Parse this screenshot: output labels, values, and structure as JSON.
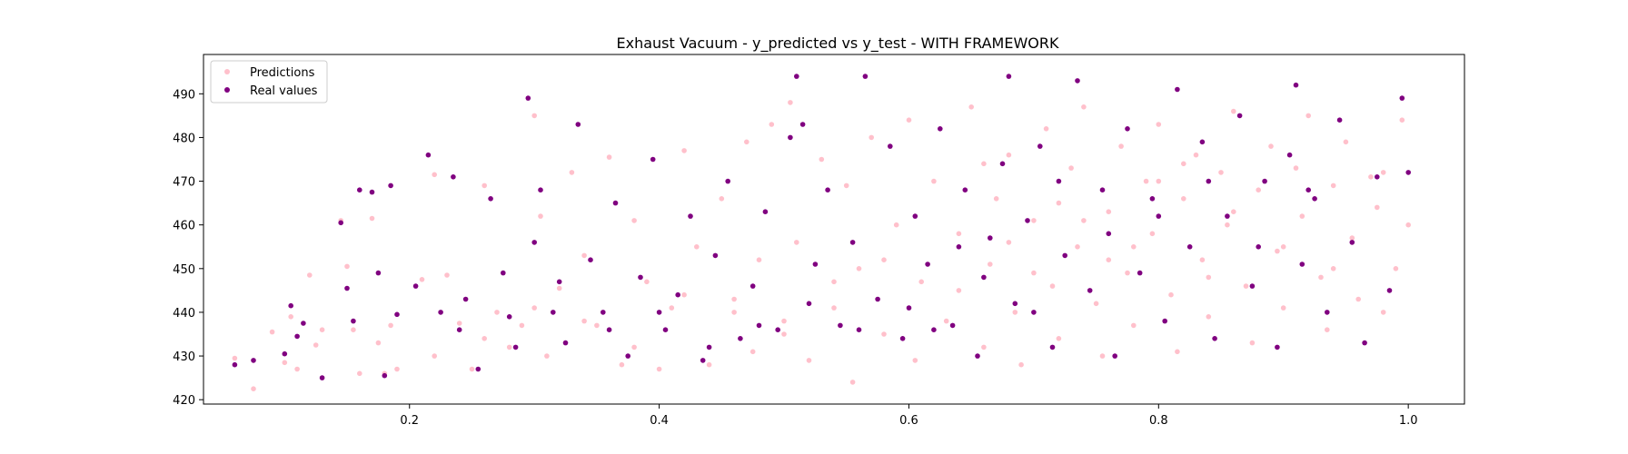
{
  "chart_data": {
    "type": "scatter",
    "title": "Exhaust Vacuum - y_predicted vs y_test - WITH FRAMEWORK",
    "xlabel": "",
    "ylabel": "",
    "xlim": [
      0.035,
      1.045
    ],
    "ylim": [
      419,
      499
    ],
    "x_ticks": [
      "0.2",
      "0.4",
      "0.6",
      "0.8",
      "1.0"
    ],
    "y_ticks": [
      "420",
      "430",
      "440",
      "450",
      "460",
      "470",
      "480",
      "490"
    ],
    "grid": false,
    "legend_position": "top-left",
    "series": [
      {
        "name": "Predictions",
        "color": "#ffc0cb",
        "points": [
          [
            0.06,
            429.5
          ],
          [
            0.075,
            422.5
          ],
          [
            0.09,
            435.5
          ],
          [
            0.1,
            428.5
          ],
          [
            0.105,
            439
          ],
          [
            0.11,
            427
          ],
          [
            0.12,
            448.5
          ],
          [
            0.125,
            432.5
          ],
          [
            0.13,
            436
          ],
          [
            0.145,
            461
          ],
          [
            0.15,
            450.5
          ],
          [
            0.155,
            436
          ],
          [
            0.16,
            426
          ],
          [
            0.17,
            461.5
          ],
          [
            0.175,
            433
          ],
          [
            0.18,
            426
          ],
          [
            0.185,
            437
          ],
          [
            0.19,
            427
          ],
          [
            0.21,
            447.5
          ],
          [
            0.22,
            471.5
          ],
          [
            0.23,
            448.5
          ],
          [
            0.24,
            437.5
          ],
          [
            0.25,
            427
          ],
          [
            0.26,
            469
          ],
          [
            0.27,
            440
          ],
          [
            0.28,
            432
          ],
          [
            0.29,
            437
          ],
          [
            0.3,
            485
          ],
          [
            0.305,
            462
          ],
          [
            0.31,
            430
          ],
          [
            0.32,
            445.5
          ],
          [
            0.33,
            472
          ],
          [
            0.34,
            453
          ],
          [
            0.35,
            437
          ],
          [
            0.36,
            475.5
          ],
          [
            0.37,
            428
          ],
          [
            0.38,
            461
          ],
          [
            0.39,
            447
          ],
          [
            0.4,
            427
          ],
          [
            0.41,
            441
          ],
          [
            0.42,
            477
          ],
          [
            0.43,
            455
          ],
          [
            0.44,
            428
          ],
          [
            0.45,
            466
          ],
          [
            0.46,
            443
          ],
          [
            0.47,
            479
          ],
          [
            0.475,
            431
          ],
          [
            0.48,
            452
          ],
          [
            0.49,
            483
          ],
          [
            0.5,
            438
          ],
          [
            0.505,
            488
          ],
          [
            0.51,
            456
          ],
          [
            0.52,
            429
          ],
          [
            0.53,
            475
          ],
          [
            0.54,
            441
          ],
          [
            0.55,
            469
          ],
          [
            0.555,
            424
          ],
          [
            0.56,
            450
          ],
          [
            0.57,
            480
          ],
          [
            0.58,
            435
          ],
          [
            0.59,
            460
          ],
          [
            0.6,
            484
          ],
          [
            0.605,
            429
          ],
          [
            0.61,
            447
          ],
          [
            0.62,
            470
          ],
          [
            0.63,
            438
          ],
          [
            0.64,
            458
          ],
          [
            0.65,
            487
          ],
          [
            0.66,
            432
          ],
          [
            0.665,
            451
          ],
          [
            0.67,
            466
          ],
          [
            0.68,
            476
          ],
          [
            0.685,
            440
          ],
          [
            0.69,
            428
          ],
          [
            0.7,
            461
          ],
          [
            0.71,
            482
          ],
          [
            0.715,
            446
          ],
          [
            0.72,
            434
          ],
          [
            0.73,
            473
          ],
          [
            0.735,
            455
          ],
          [
            0.74,
            487
          ],
          [
            0.75,
            442
          ],
          [
            0.755,
            430
          ],
          [
            0.76,
            463
          ],
          [
            0.77,
            478
          ],
          [
            0.775,
            449
          ],
          [
            0.78,
            437
          ],
          [
            0.79,
            470
          ],
          [
            0.795,
            458
          ],
          [
            0.8,
            483
          ],
          [
            0.81,
            444
          ],
          [
            0.815,
            431
          ],
          [
            0.82,
            466
          ],
          [
            0.83,
            476
          ],
          [
            0.835,
            452
          ],
          [
            0.84,
            439
          ],
          [
            0.85,
            472
          ],
          [
            0.855,
            460
          ],
          [
            0.86,
            486
          ],
          [
            0.87,
            446
          ],
          [
            0.875,
            433
          ],
          [
            0.88,
            468
          ],
          [
            0.89,
            478
          ],
          [
            0.895,
            454
          ],
          [
            0.9,
            441
          ],
          [
            0.91,
            473
          ],
          [
            0.915,
            462
          ],
          [
            0.92,
            485
          ],
          [
            0.93,
            448
          ],
          [
            0.935,
            436
          ],
          [
            0.94,
            469
          ],
          [
            0.95,
            479
          ],
          [
            0.955,
            457
          ],
          [
            0.96,
            443
          ],
          [
            0.97,
            471
          ],
          [
            0.975,
            464
          ],
          [
            0.98,
            440
          ],
          [
            0.99,
            450
          ],
          [
            0.995,
            484
          ],
          [
            1.0,
            460
          ],
          [
            0.68,
            456
          ],
          [
            0.72,
            465
          ],
          [
            0.76,
            452
          ],
          [
            0.8,
            470
          ],
          [
            0.84,
            448
          ],
          [
            0.64,
            445
          ],
          [
            0.58,
            452
          ],
          [
            0.54,
            447
          ],
          [
            0.5,
            435
          ],
          [
            0.46,
            440
          ],
          [
            0.42,
            444
          ],
          [
            0.38,
            432
          ],
          [
            0.34,
            438
          ],
          [
            0.3,
            441
          ],
          [
            0.26,
            434
          ],
          [
            0.22,
            430
          ],
          [
            0.66,
            474
          ],
          [
            0.7,
            449
          ],
          [
            0.74,
            461
          ],
          [
            0.78,
            455
          ],
          [
            0.82,
            474
          ],
          [
            0.86,
            463
          ],
          [
            0.9,
            455
          ],
          [
            0.94,
            450
          ],
          [
            0.98,
            472
          ]
        ]
      },
      {
        "name": "Real values",
        "color": "#800080",
        "points": [
          [
            0.06,
            428
          ],
          [
            0.075,
            429
          ],
          [
            0.1,
            430.5
          ],
          [
            0.105,
            441.5
          ],
          [
            0.11,
            434.5
          ],
          [
            0.115,
            437.5
          ],
          [
            0.13,
            425
          ],
          [
            0.145,
            460.5
          ],
          [
            0.15,
            445.5
          ],
          [
            0.155,
            438
          ],
          [
            0.16,
            468
          ],
          [
            0.17,
            467.5
          ],
          [
            0.175,
            449
          ],
          [
            0.18,
            425.5
          ],
          [
            0.185,
            469
          ],
          [
            0.19,
            439.5
          ],
          [
            0.205,
            446
          ],
          [
            0.215,
            476
          ],
          [
            0.225,
            440
          ],
          [
            0.235,
            471
          ],
          [
            0.245,
            443
          ],
          [
            0.255,
            427
          ],
          [
            0.265,
            466
          ],
          [
            0.275,
            449
          ],
          [
            0.285,
            432
          ],
          [
            0.295,
            489
          ],
          [
            0.3,
            456
          ],
          [
            0.305,
            468
          ],
          [
            0.315,
            440
          ],
          [
            0.325,
            433
          ],
          [
            0.335,
            483
          ],
          [
            0.345,
            452
          ],
          [
            0.355,
            440
          ],
          [
            0.365,
            465
          ],
          [
            0.375,
            430
          ],
          [
            0.385,
            448
          ],
          [
            0.395,
            475
          ],
          [
            0.405,
            436
          ],
          [
            0.415,
            444
          ],
          [
            0.425,
            462
          ],
          [
            0.435,
            429
          ],
          [
            0.445,
            453
          ],
          [
            0.455,
            470
          ],
          [
            0.465,
            434
          ],
          [
            0.475,
            446
          ],
          [
            0.485,
            463
          ],
          [
            0.495,
            436
          ],
          [
            0.505,
            480
          ],
          [
            0.51,
            494
          ],
          [
            0.515,
            483
          ],
          [
            0.525,
            451
          ],
          [
            0.535,
            468
          ],
          [
            0.545,
            437
          ],
          [
            0.555,
            456
          ],
          [
            0.565,
            494
          ],
          [
            0.575,
            443
          ],
          [
            0.585,
            478
          ],
          [
            0.595,
            434
          ],
          [
            0.605,
            462
          ],
          [
            0.615,
            451
          ],
          [
            0.625,
            482
          ],
          [
            0.635,
            437
          ],
          [
            0.645,
            468
          ],
          [
            0.655,
            430
          ],
          [
            0.665,
            457
          ],
          [
            0.675,
            474
          ],
          [
            0.68,
            494
          ],
          [
            0.685,
            442
          ],
          [
            0.695,
            461
          ],
          [
            0.705,
            478
          ],
          [
            0.715,
            432
          ],
          [
            0.725,
            453
          ],
          [
            0.735,
            493
          ],
          [
            0.745,
            445
          ],
          [
            0.755,
            468
          ],
          [
            0.765,
            430
          ],
          [
            0.775,
            482
          ],
          [
            0.785,
            449
          ],
          [
            0.795,
            466
          ],
          [
            0.805,
            438
          ],
          [
            0.815,
            491
          ],
          [
            0.825,
            455
          ],
          [
            0.835,
            479
          ],
          [
            0.845,
            434
          ],
          [
            0.855,
            462
          ],
          [
            0.865,
            485
          ],
          [
            0.875,
            446
          ],
          [
            0.885,
            470
          ],
          [
            0.895,
            432
          ],
          [
            0.905,
            476
          ],
          [
            0.91,
            492
          ],
          [
            0.915,
            451
          ],
          [
            0.925,
            466
          ],
          [
            0.935,
            440
          ],
          [
            0.945,
            484
          ],
          [
            0.955,
            456
          ],
          [
            0.965,
            433
          ],
          [
            0.975,
            471
          ],
          [
            0.985,
            445
          ],
          [
            0.995,
            489
          ],
          [
            1.0,
            472
          ],
          [
            0.6,
            441
          ],
          [
            0.62,
            436
          ],
          [
            0.64,
            455
          ],
          [
            0.66,
            448
          ],
          [
            0.7,
            440
          ],
          [
            0.72,
            470
          ],
          [
            0.76,
            458
          ],
          [
            0.8,
            462
          ],
          [
            0.84,
            470
          ],
          [
            0.88,
            455
          ],
          [
            0.92,
            468
          ],
          [
            0.56,
            436
          ],
          [
            0.52,
            442
          ],
          [
            0.48,
            437
          ],
          [
            0.44,
            432
          ],
          [
            0.4,
            440
          ],
          [
            0.36,
            436
          ],
          [
            0.32,
            447
          ],
          [
            0.28,
            439
          ],
          [
            0.24,
            436
          ]
        ]
      }
    ]
  }
}
